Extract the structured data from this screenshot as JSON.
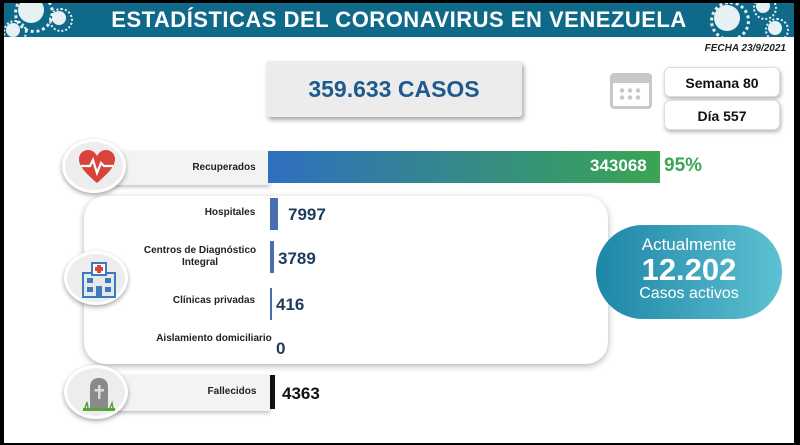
{
  "header": {
    "title": "ESTADÍSTICAS DEL CORONAVIRUS EN VENEZUELA"
  },
  "date": "FECHA 23/9/2021",
  "total": "359.633 CASOS",
  "week": "Semana 80",
  "day": "Día 557",
  "recovered": {
    "label": "Recuperados",
    "value": "343068",
    "percent": "95%"
  },
  "rows": [
    {
      "label": "Hospitales",
      "value": "7997"
    },
    {
      "label": "Centros de Diagnóstico Integral",
      "value": "3789"
    },
    {
      "label": "Clínicas privadas",
      "value": "416"
    },
    {
      "label": "Aislamiento domiciliario",
      "value": "0"
    }
  ],
  "deceased": {
    "label": "Fallecidos",
    "value": "4363"
  },
  "active": {
    "title": "Actualmente",
    "value": "12.202",
    "subtitle": "Casos activos"
  },
  "colors": {
    "header": "#0f6a8a",
    "accent": "#1e5a8e",
    "green": "#3aa552",
    "bar": "#4a6db2"
  },
  "icons": [
    "virus-icon",
    "calendar-icon",
    "heart-pulse-icon",
    "hospital-icon",
    "tombstone-icon"
  ]
}
